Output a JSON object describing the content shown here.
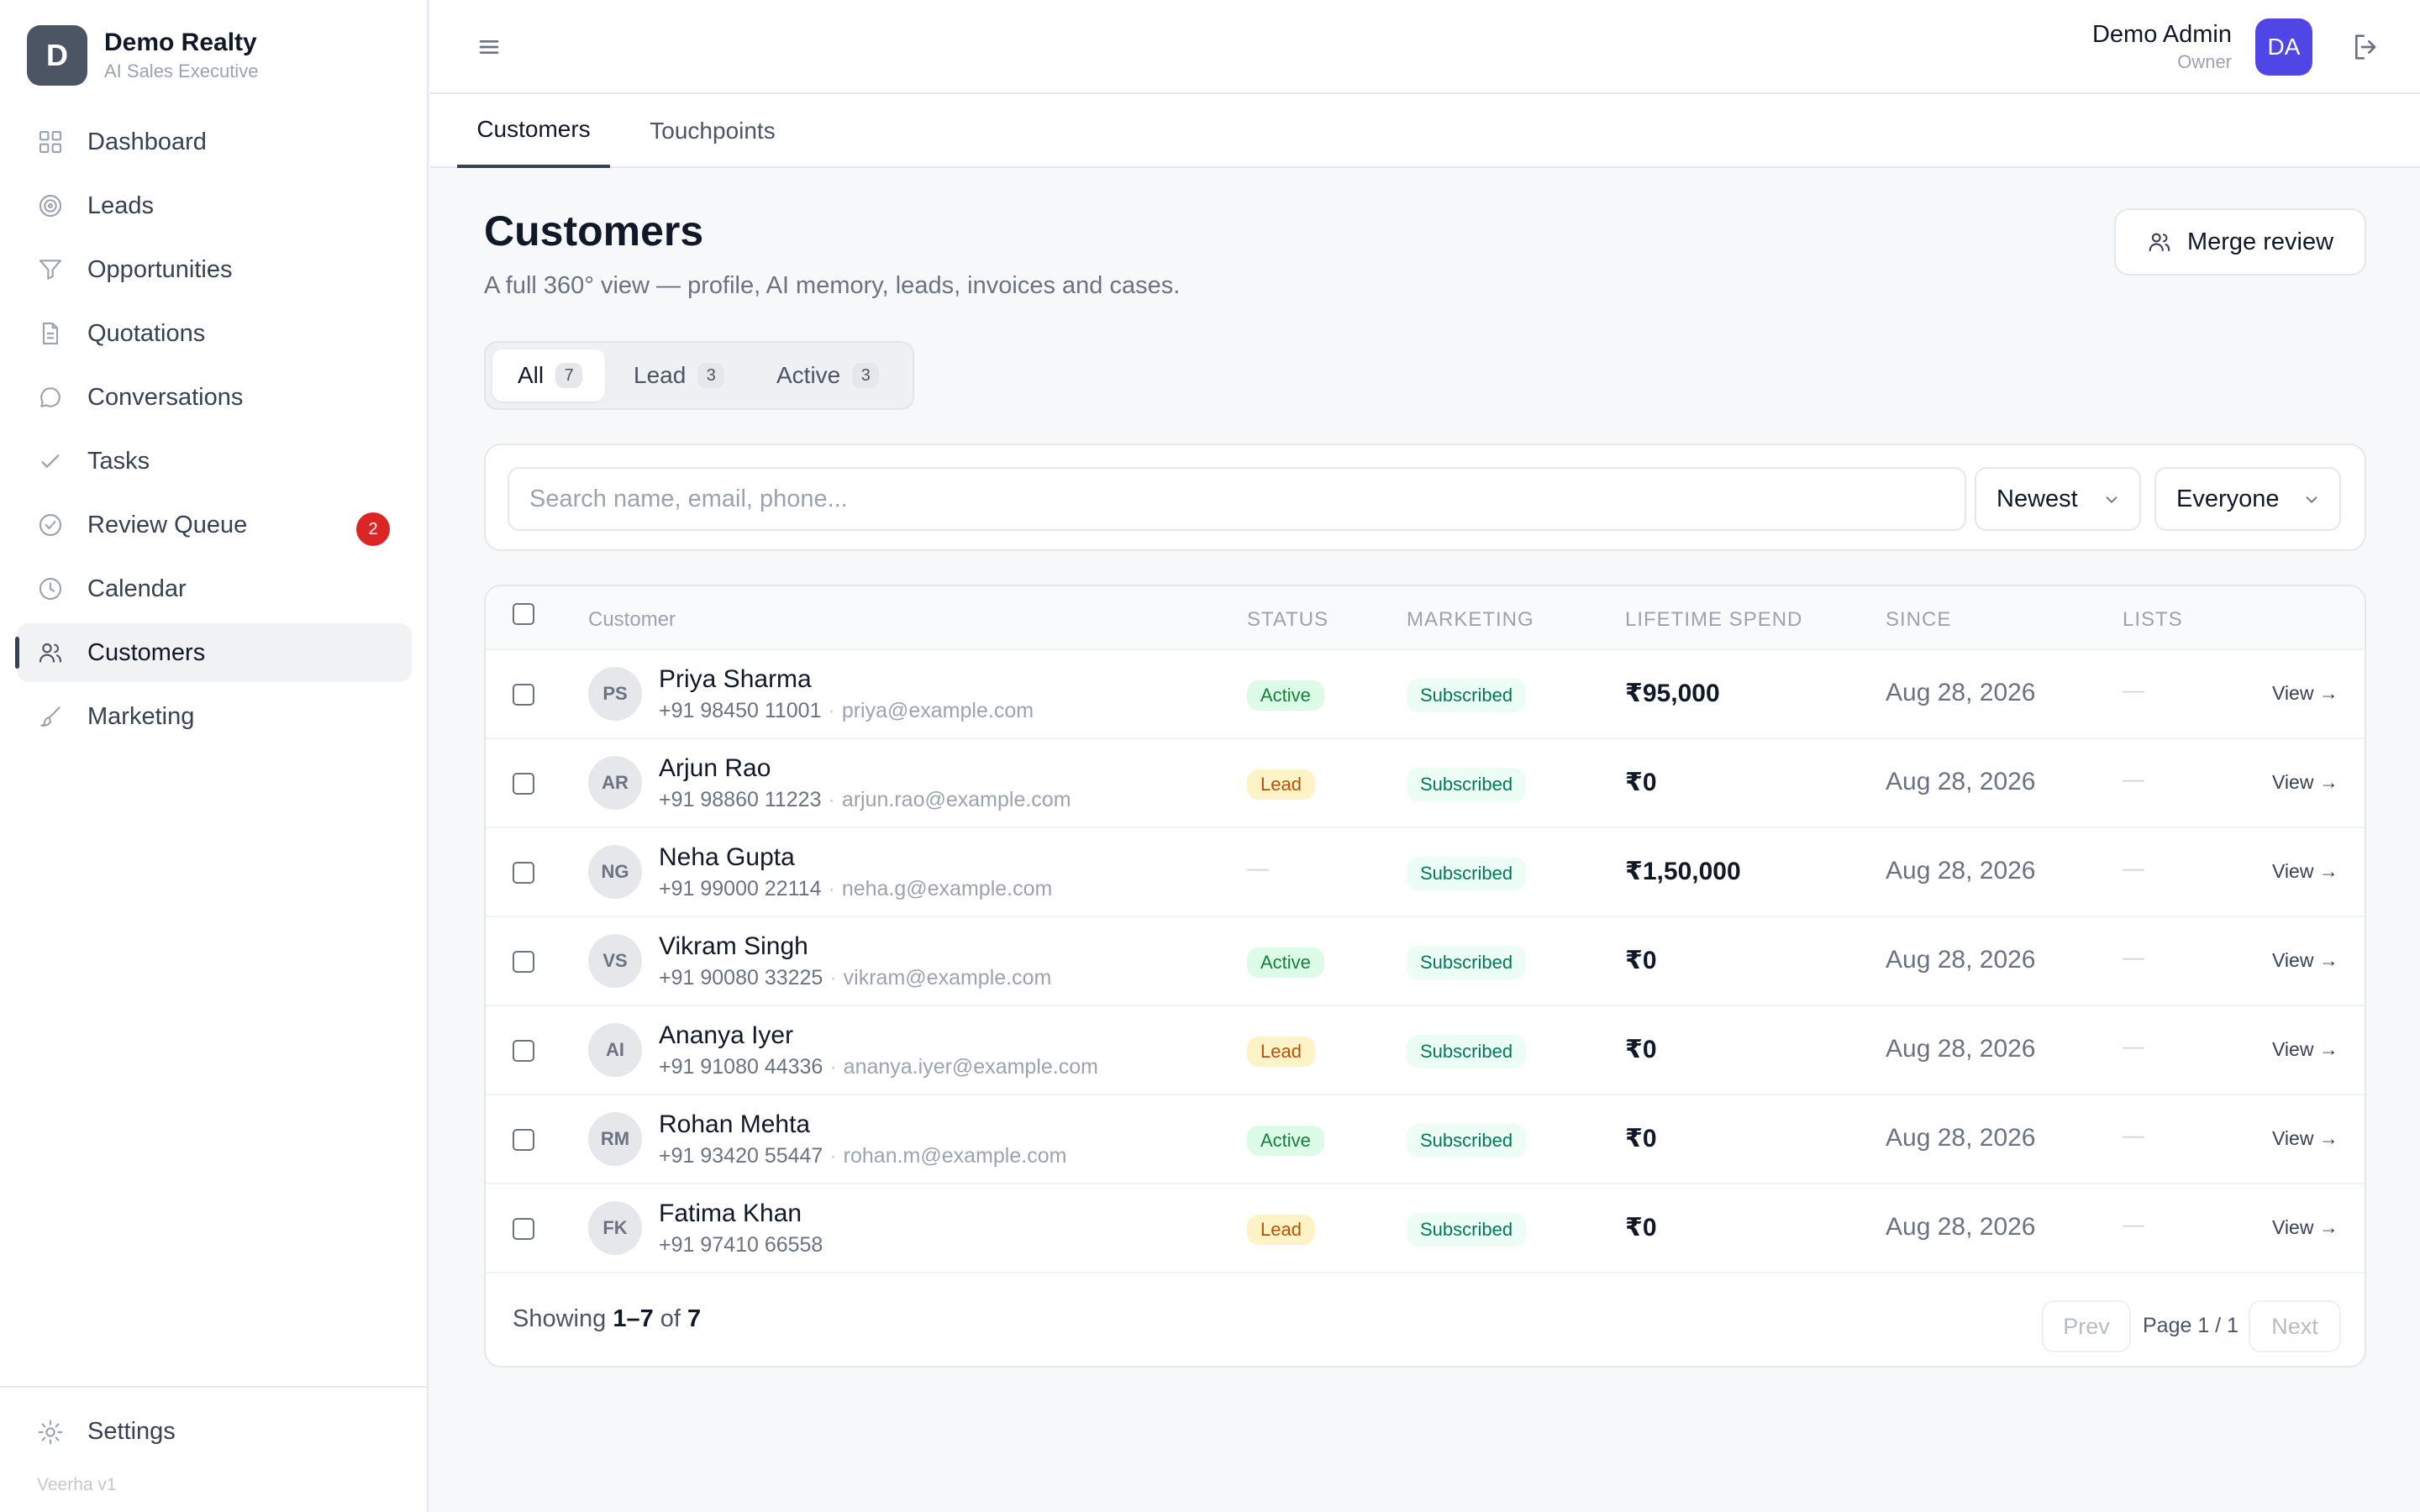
{
  "brand": {
    "initial": "D",
    "name": "Demo Realty",
    "subtitle": "AI Sales Executive"
  },
  "nav": [
    {
      "label": "Dashboard",
      "icon": "grid-icon"
    },
    {
      "label": "Leads",
      "icon": "target-icon"
    },
    {
      "label": "Opportunities",
      "icon": "filter-icon"
    },
    {
      "label": "Quotations",
      "icon": "document-icon"
    },
    {
      "label": "Conversations",
      "icon": "chat-bubble-icon"
    },
    {
      "label": "Tasks",
      "icon": "check-icon"
    },
    {
      "label": "Review Queue",
      "icon": "check-circle-icon",
      "badge": "2"
    },
    {
      "label": "Calendar",
      "icon": "clock-icon"
    },
    {
      "label": "Customers",
      "icon": "users-icon",
      "active": true
    },
    {
      "label": "Marketing",
      "icon": "brush-icon"
    }
  ],
  "settings": {
    "label": "Settings",
    "icon": "sun-gear-icon"
  },
  "version": "Veerha v1",
  "topbar": {
    "user_name": "Demo Admin",
    "user_role": "Owner",
    "user_initials": "DA"
  },
  "tabs": [
    {
      "label": "Customers",
      "active": true
    },
    {
      "label": "Touchpoints",
      "active": false
    }
  ],
  "page": {
    "title": "Customers",
    "subtitle": "A full 360° view — profile, AI memory, leads, invoices and cases.",
    "merge_button": "Merge review"
  },
  "filters": [
    {
      "label": "All",
      "count": "7",
      "active": true
    },
    {
      "label": "Lead",
      "count": "3",
      "active": false
    },
    {
      "label": "Active",
      "count": "3",
      "active": false
    }
  ],
  "search": {
    "placeholder": "Search name, email, phone...",
    "value": ""
  },
  "sort_select": "Newest",
  "owner_select": "Everyone",
  "table": {
    "columns": [
      "Customer",
      "STATUS",
      "MARKETING",
      "LIFETIME SPEND",
      "SINCE",
      "LISTS"
    ],
    "rows": [
      {
        "initials": "PS",
        "name": "Priya Sharma",
        "phone": "+91 98450 11001",
        "email": "priya@example.com",
        "status": "Active",
        "marketing": "Subscribed",
        "spend": "₹95,000",
        "since": "Aug 28, 2026",
        "lists": "—",
        "action": "View →"
      },
      {
        "initials": "AR",
        "name": "Arjun Rao",
        "phone": "+91 98860 11223",
        "email": "arjun.rao@example.com",
        "status": "Lead",
        "marketing": "Subscribed",
        "spend": "₹0",
        "since": "Aug 28, 2026",
        "lists": "—",
        "action": "View →"
      },
      {
        "initials": "NG",
        "name": "Neha Gupta",
        "phone": "+91 99000 22114",
        "email": "neha.g@example.com",
        "status": "—",
        "marketing": "Subscribed",
        "spend": "₹1,50,000",
        "since": "Aug 28, 2026",
        "lists": "—",
        "action": "View →"
      },
      {
        "initials": "VS",
        "name": "Vikram Singh",
        "phone": "+91 90080 33225",
        "email": "vikram@example.com",
        "status": "Active",
        "marketing": "Subscribed",
        "spend": "₹0",
        "since": "Aug 28, 2026",
        "lists": "—",
        "action": "View →"
      },
      {
        "initials": "AI",
        "name": "Ananya Iyer",
        "phone": "+91 91080 44336",
        "email": "ananya.iyer@example.com",
        "status": "Lead",
        "marketing": "Subscribed",
        "spend": "₹0",
        "since": "Aug 28, 2026",
        "lists": "—",
        "action": "View →"
      },
      {
        "initials": "RM",
        "name": "Rohan Mehta",
        "phone": "+91 93420 55447",
        "email": "rohan.m@example.com",
        "status": "Active",
        "marketing": "Subscribed",
        "spend": "₹0",
        "since": "Aug 28, 2026",
        "lists": "—",
        "action": "View →"
      },
      {
        "initials": "FK",
        "name": "Fatima Khan",
        "phone": "+91 97410 66558",
        "email": "",
        "status": "Lead",
        "marketing": "Subscribed",
        "spend": "₹0",
        "since": "Aug 28, 2026",
        "lists": "—",
        "action": "View →"
      }
    ]
  },
  "footer": {
    "showing_prefix": "Showing",
    "showing_range": "1–7",
    "showing_of": "of",
    "showing_total": "7",
    "prev": "Prev",
    "page_label": "Page 1 / 1",
    "next": "Next"
  },
  "colors": {
    "accent": "#4f46e5",
    "badge_red": "#dc2626",
    "active_green": "#15803d",
    "lead_amber": "#b45309",
    "subscribed_green": "#047857"
  }
}
